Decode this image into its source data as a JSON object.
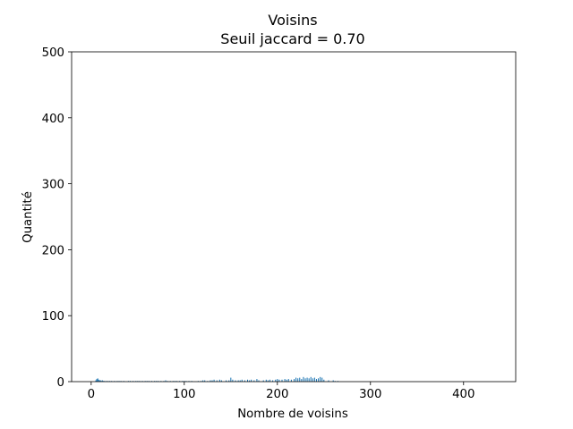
{
  "chart_data": {
    "type": "bar",
    "title": "Voisins",
    "subtitle": "Seuil jaccard = 0.70",
    "xlabel": "Nombre de voisins",
    "ylabel": "Quantité",
    "xlim": [
      -21,
      456
    ],
    "ylim": [
      0,
      500
    ],
    "xticks": [
      0,
      100,
      200,
      300,
      400
    ],
    "yticks": [
      0,
      100,
      200,
      300,
      400,
      500
    ],
    "xtick_labels": [
      "0",
      "100",
      "200",
      "300",
      "400"
    ],
    "ytick_labels": [
      "0",
      "100",
      "200",
      "300",
      "400",
      "500"
    ],
    "grid": false,
    "bar_color": "#1f77b4",
    "series": [
      {
        "x": [
          5,
          6,
          7,
          8,
          9,
          10,
          11,
          12,
          13,
          14,
          16,
          18,
          20,
          22,
          25,
          28,
          30,
          32,
          35,
          40,
          42,
          45,
          48,
          50,
          52,
          55,
          58,
          60,
          62,
          65,
          68,
          70,
          72,
          75,
          78,
          80,
          82,
          85,
          88,
          90,
          92,
          95,
          98,
          100,
          102,
          105,
          108,
          115,
          118,
          120,
          122,
          125,
          128,
          130,
          132,
          135,
          138,
          140,
          145,
          148,
          150,
          152,
          155,
          158,
          160,
          162,
          165,
          168,
          170,
          172,
          175,
          178,
          180,
          185,
          188,
          190,
          192,
          195,
          198,
          200,
          202,
          205,
          208,
          210,
          212,
          215,
          218,
          220,
          222,
          224,
          226,
          228,
          230,
          232,
          234,
          236,
          238,
          240,
          242,
          244,
          246,
          248,
          250,
          255,
          260,
          262,
          265
        ],
        "values": [
          2,
          4,
          5,
          3,
          2,
          2,
          1,
          2,
          1,
          1,
          1,
          1,
          1,
          1,
          1,
          1,
          1,
          1,
          1,
          1,
          1,
          1,
          1,
          1,
          1,
          1,
          1,
          1,
          1,
          1,
          1,
          1,
          1,
          1,
          1,
          2,
          1,
          1,
          1,
          1,
          1,
          1,
          1,
          1,
          1,
          1,
          1,
          1,
          1,
          2,
          2,
          1,
          2,
          2,
          3,
          2,
          3,
          2,
          2,
          2,
          6,
          3,
          2,
          2,
          2,
          3,
          2,
          3,
          2,
          3,
          2,
          4,
          2,
          2,
          3,
          2,
          3,
          2,
          3,
          4,
          3,
          3,
          4,
          3,
          4,
          3,
          4,
          6,
          5,
          6,
          4,
          7,
          5,
          6,
          5,
          7,
          5,
          6,
          4,
          5,
          7,
          6,
          3,
          2,
          2,
          1,
          1
        ]
      }
    ]
  }
}
